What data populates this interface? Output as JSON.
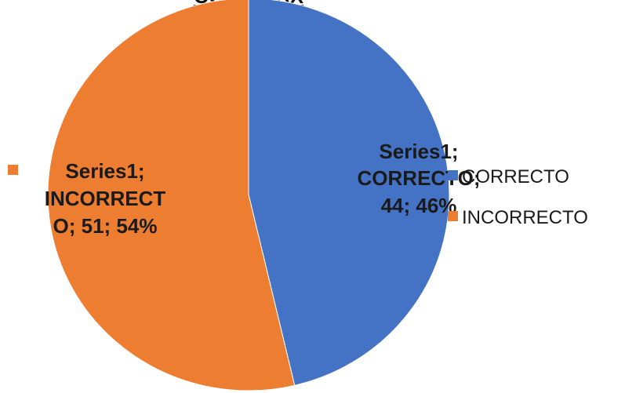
{
  "chart_data": {
    "type": "pie",
    "title": "CON GRAX",
    "categories": [
      "CORRECTO",
      "INCORRECTO"
    ],
    "series": [
      {
        "name": "Series1",
        "values": [
          44,
          51
        ],
        "percents": [
          "46%",
          "54%"
        ]
      }
    ],
    "colors": [
      "#4472C4",
      "#ED7D31"
    ],
    "data_labels": [
      [
        "Series1;",
        "CORRECTO;",
        "44; 46%"
      ],
      [
        "Series1;",
        "INCORRECT",
        "O; 51; 54%"
      ]
    ],
    "legend": {
      "placement": "right",
      "entries": [
        "CORRECTO",
        "INCORRECTO"
      ]
    }
  }
}
